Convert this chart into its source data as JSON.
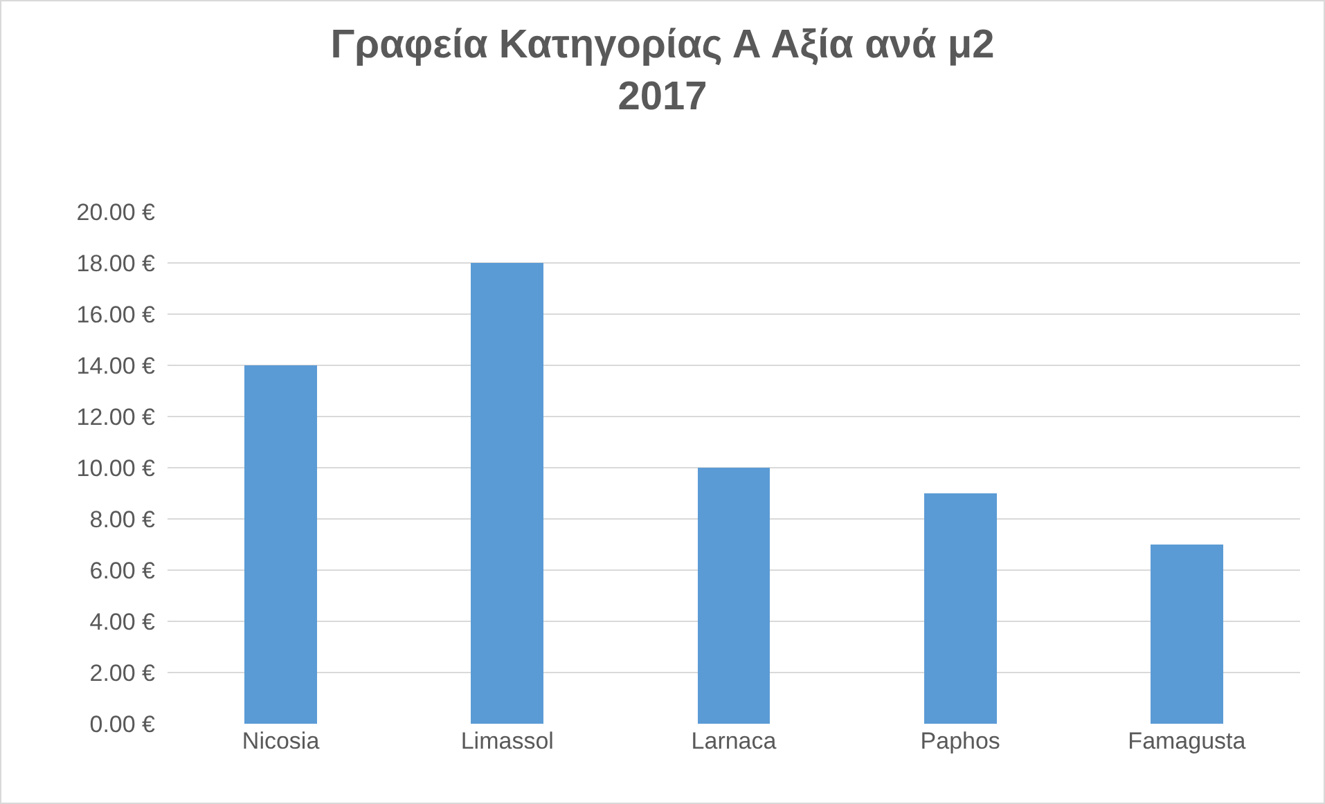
{
  "chart_data": {
    "type": "bar",
    "title": "Γραφεία Κατηγορίας Α Αξία ανά μ2\n2017",
    "categories": [
      "Nicosia",
      "Limassol",
      "Larnaca",
      "Paphos",
      "Famagusta"
    ],
    "values": [
      14,
      18,
      10,
      9,
      7
    ],
    "color": "#5b9bd5",
    "ylim": [
      0,
      20
    ],
    "yticks": [
      {
        "value": 0,
        "label": "0.00 €"
      },
      {
        "value": 2,
        "label": "2.00 €"
      },
      {
        "value": 4,
        "label": "4.00 €"
      },
      {
        "value": 6,
        "label": "6.00 €"
      },
      {
        "value": 8,
        "label": "8.00 €"
      },
      {
        "value": 10,
        "label": "10.00 €"
      },
      {
        "value": 12,
        "label": "12.00 €"
      },
      {
        "value": 14,
        "label": "14.00 €"
      },
      {
        "value": 16,
        "label": "16.00 €"
      },
      {
        "value": 18,
        "label": "18.00 €"
      },
      {
        "value": 20,
        "label": "20.00 €"
      }
    ],
    "grid": "y",
    "legend": false
  }
}
